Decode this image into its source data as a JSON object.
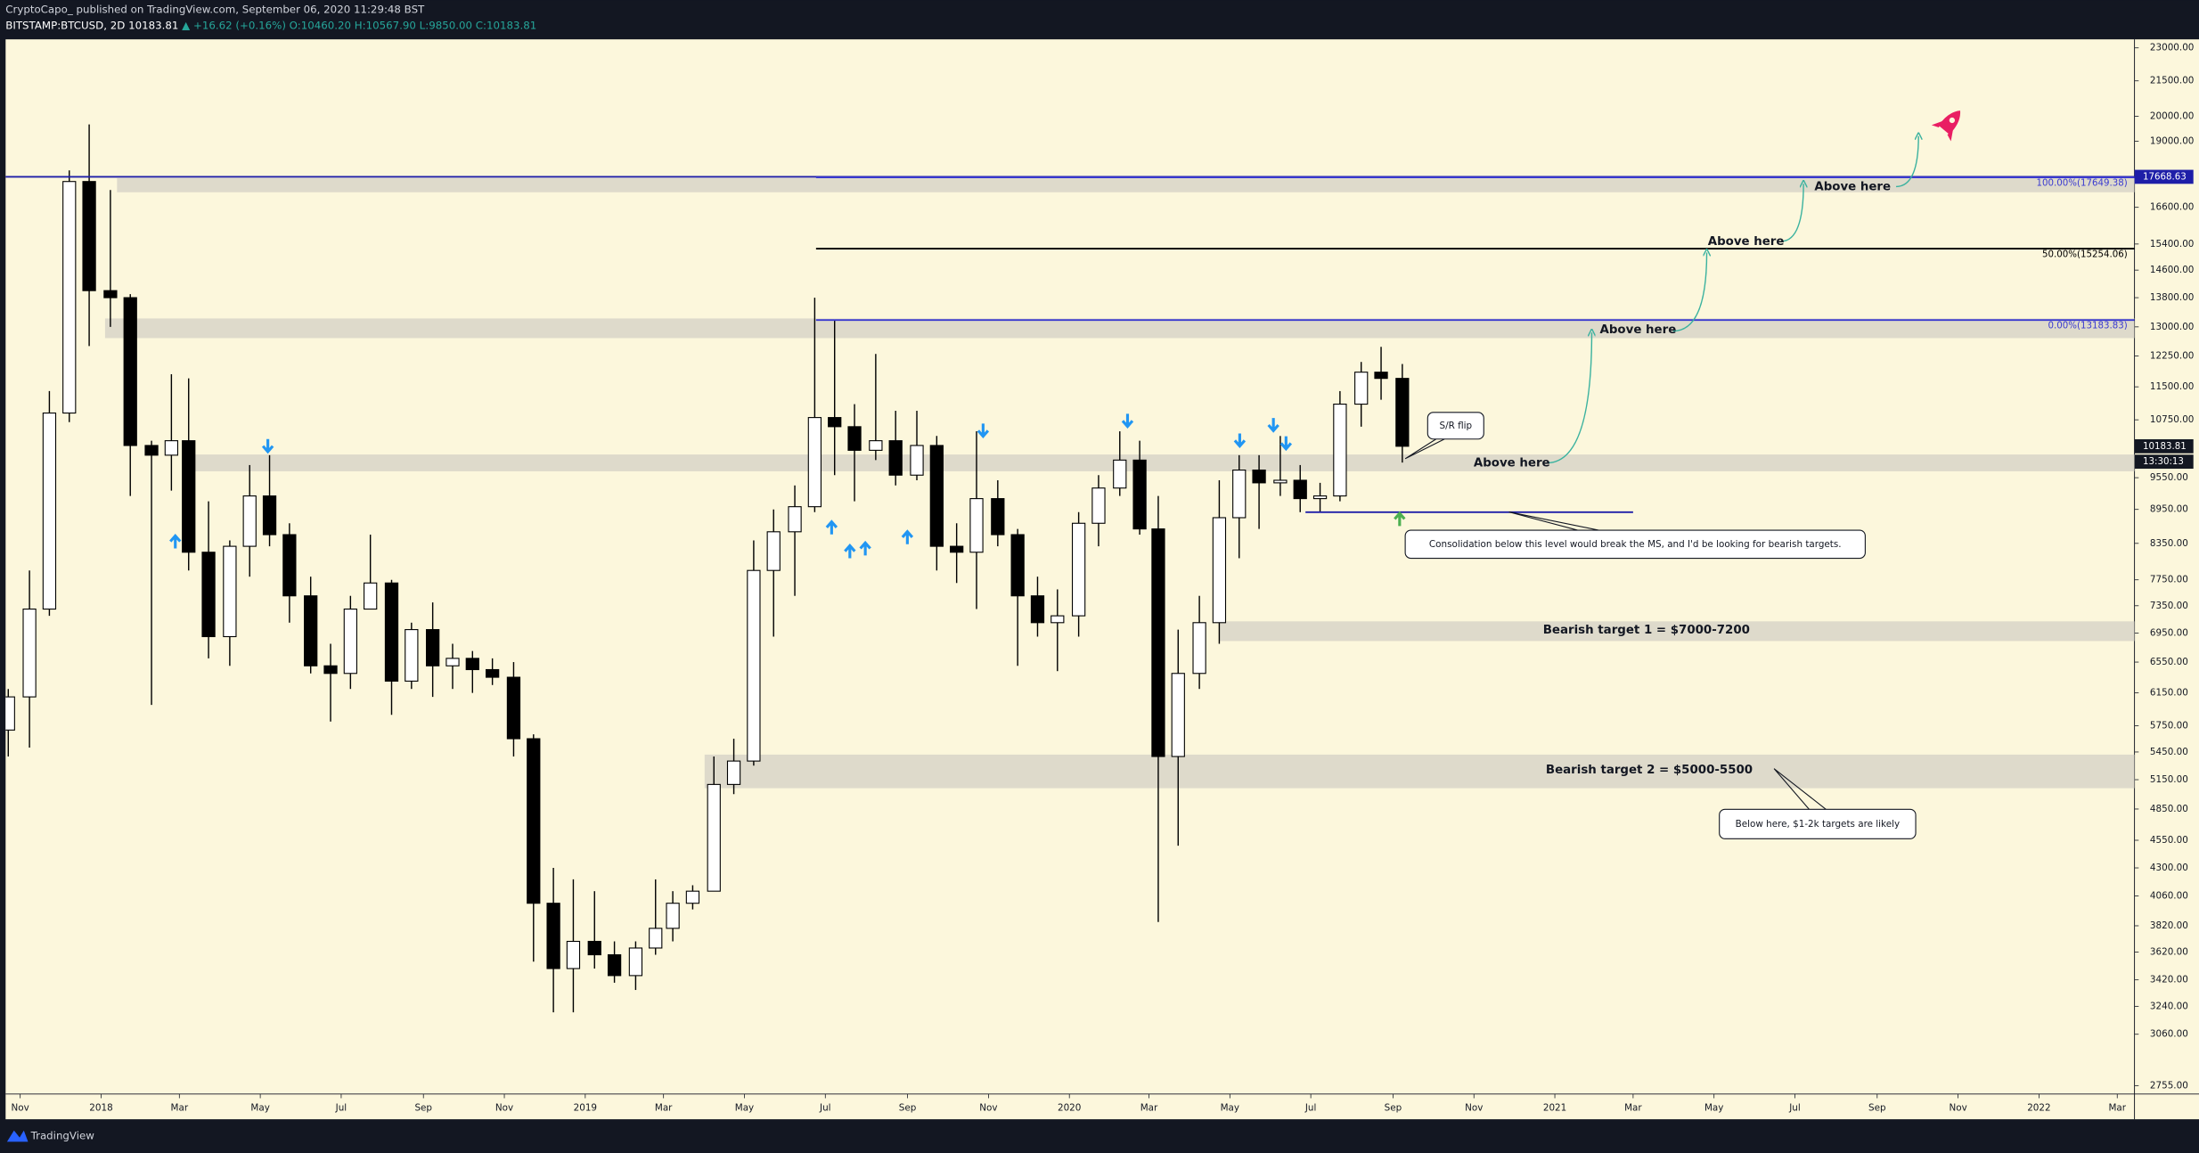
{
  "header": {
    "author_line": "CryptoCapo_  published on TradingView.com, September 06, 2020 11:29:48 BST",
    "symbol": "BITSTAMP:BTCUSD, 2D",
    "last": "10183.81",
    "change": "▲ +16.62 (+0.16%)",
    "ohlc": "O:10460.20 H:10567.90 L:9850.00 C:10183.81"
  },
  "footer": {
    "brand": "TradingView"
  },
  "chart_data": {
    "type": "candlestick",
    "log_scale": true,
    "grid": false,
    "up_color": "#ffffff",
    "down_color": "#000000",
    "wick_color": "#000000",
    "x": [
      "2017-10-16",
      "2017-11-01",
      "2017-11-16",
      "2017-12-01",
      "2017-12-16",
      "2018-01-01",
      "2018-01-16",
      "2018-02-01",
      "2018-02-16",
      "2018-03-01",
      "2018-03-16",
      "2018-04-01",
      "2018-04-16",
      "2018-05-01",
      "2018-05-16",
      "2018-06-01",
      "2018-06-16",
      "2018-07-01",
      "2018-07-16",
      "2018-08-01",
      "2018-08-16",
      "2018-09-01",
      "2018-09-16",
      "2018-10-01",
      "2018-10-16",
      "2018-11-01",
      "2018-11-16",
      "2018-12-01",
      "2018-12-16",
      "2019-01-01",
      "2019-01-16",
      "2019-02-01",
      "2019-02-16",
      "2019-03-01",
      "2019-03-16",
      "2019-04-01",
      "2019-04-16",
      "2019-05-01",
      "2019-05-16",
      "2019-06-01",
      "2019-06-16",
      "2019-07-01",
      "2019-07-16",
      "2019-08-01",
      "2019-08-16",
      "2019-09-01",
      "2019-09-16",
      "2019-10-01",
      "2019-10-16",
      "2019-11-01",
      "2019-11-16",
      "2019-12-01",
      "2019-12-16",
      "2020-01-01",
      "2020-01-16",
      "2020-02-01",
      "2020-02-16",
      "2020-03-01",
      "2020-03-16",
      "2020-04-01",
      "2020-04-16",
      "2020-05-01",
      "2020-05-16",
      "2020-06-01",
      "2020-06-16",
      "2020-07-01",
      "2020-07-16",
      "2020-08-01",
      "2020-08-16",
      "2020-09-01"
    ],
    "open": [
      5700,
      6100,
      7300,
      10900,
      17500,
      14000,
      13800,
      10200,
      10000,
      10300,
      8200,
      6900,
      8300,
      9200,
      8500,
      7500,
      6500,
      6400,
      7300,
      7700,
      6300,
      7000,
      6500,
      6600,
      6450,
      6350,
      5600,
      4000,
      3500,
      3700,
      3600,
      3450,
      3650,
      3800,
      4000,
      4100,
      5100,
      5350,
      7900,
      8550,
      9000,
      10800,
      10600,
      10100,
      10300,
      9600,
      10200,
      8300,
      8200,
      9150,
      8500,
      7500,
      7100,
      7200,
      8700,
      9350,
      9900,
      8600,
      5400,
      6400,
      7100,
      8800,
      9700,
      9450,
      9500,
      9150,
      9200,
      11100,
      11850,
      11700
    ],
    "high": [
      6200,
      7900,
      11400,
      17900,
      19666,
      17200,
      13900,
      10300,
      11800,
      11700,
      9100,
      8400,
      9800,
      10000,
      8700,
      7800,
      6800,
      7500,
      8500,
      7750,
      7100,
      7400,
      6800,
      6700,
      6600,
      6550,
      5650,
      4300,
      4200,
      4100,
      3700,
      3700,
      4200,
      4100,
      4150,
      5400,
      5600,
      8400,
      8950,
      9400,
      13800,
      13200,
      11100,
      12300,
      10950,
      10950,
      10400,
      8700,
      10500,
      9500,
      8600,
      7800,
      7600,
      8900,
      9600,
      10500,
      10300,
      9200,
      7000,
      7500,
      9500,
      10000,
      10000,
      10400,
      9800,
      9450,
      11400,
      12100,
      12480,
      12050
    ],
    "low": [
      5400,
      5500,
      7200,
      10700,
      12500,
      13000,
      9200,
      6000,
      9300,
      7900,
      6600,
      6500,
      7800,
      8300,
      7100,
      6400,
      5800,
      6200,
      7300,
      5880,
      6200,
      6100,
      6200,
      6150,
      6250,
      5400,
      3550,
      3200,
      3200,
      3500,
      3400,
      3350,
      3600,
      3700,
      3950,
      4100,
      5000,
      5300,
      6900,
      7500,
      8900,
      9600,
      9100,
      9900,
      9400,
      9500,
      7900,
      7700,
      7300,
      8300,
      6500,
      6900,
      6430,
      6900,
      8300,
      9200,
      8500,
      3850,
      4500,
      6200,
      6800,
      8100,
      8600,
      9200,
      8900,
      8900,
      9100,
      10600,
      11200,
      9850
    ],
    "close": [
      6100,
      7300,
      10900,
      17500,
      14000,
      13800,
      10200,
      10000,
      10300,
      8200,
      6900,
      8300,
      9200,
      8500,
      7500,
      6500,
      6400,
      7300,
      7700,
      6300,
      7000,
      6500,
      6600,
      6450,
      6350,
      5600,
      4000,
      3500,
      3700,
      3600,
      3450,
      3650,
      3800,
      4000,
      4100,
      5100,
      5350,
      7900,
      8550,
      9000,
      10800,
      10600,
      10100,
      10300,
      9600,
      10200,
      8300,
      8200,
      9150,
      8500,
      7500,
      7100,
      7200,
      8700,
      9350,
      9900,
      8600,
      5400,
      6400,
      7100,
      8800,
      9700,
      9450,
      9500,
      9150,
      9200,
      11100,
      11850,
      11700,
      10183.81
    ],
    "xlim": [
      "2017-10-21",
      "2022-03-14"
    ],
    "xticks": [
      {
        "value": "2017-11",
        "label": "Nov"
      },
      {
        "value": "2018-01",
        "label": "2018"
      },
      {
        "value": "2018-03",
        "label": "Mar"
      },
      {
        "value": "2018-05",
        "label": "May"
      },
      {
        "value": "2018-07",
        "label": "Jul"
      },
      {
        "value": "2018-09",
        "label": "Sep"
      },
      {
        "value": "2018-11",
        "label": "Nov"
      },
      {
        "value": "2019-01",
        "label": "2019"
      },
      {
        "value": "2019-03",
        "label": "Mar"
      },
      {
        "value": "2019-05",
        "label": "May"
      },
      {
        "value": "2019-07",
        "label": "Jul"
      },
      {
        "value": "2019-09",
        "label": "Sep"
      },
      {
        "value": "2019-11",
        "label": "Nov"
      },
      {
        "value": "2020-01",
        "label": "2020"
      },
      {
        "value": "2020-03",
        "label": "Mar"
      },
      {
        "value": "2020-05",
        "label": "May"
      },
      {
        "value": "2020-07",
        "label": "Jul"
      },
      {
        "value": "2020-09",
        "label": "Sep"
      },
      {
        "value": "2020-11",
        "label": "Nov"
      },
      {
        "value": "2021-01",
        "label": "2021"
      },
      {
        "value": "2021-03",
        "label": "Mar"
      },
      {
        "value": "2021-05",
        "label": "May"
      },
      {
        "value": "2021-07",
        "label": "Jul"
      },
      {
        "value": "2021-09",
        "label": "Sep"
      },
      {
        "value": "2021-11",
        "label": "Nov"
      },
      {
        "value": "2022-01",
        "label": "2022"
      },
      {
        "value": "2022-03",
        "label": "Mar"
      }
    ],
    "ylim": [
      2708,
      23404
    ],
    "yticks": [
      {
        "value": 23000,
        "label": "23000.00"
      },
      {
        "value": 21500,
        "label": "21500.00"
      },
      {
        "value": 20000,
        "label": "20000.00"
      },
      {
        "value": 19000,
        "label": "19000.00"
      },
      {
        "value": 16600,
        "label": "16600.00"
      },
      {
        "value": 15400,
        "label": "15400.00"
      },
      {
        "value": 14600,
        "label": "14600.00"
      },
      {
        "value": 13800,
        "label": "13800.00"
      },
      {
        "value": 13000,
        "label": "13000.00"
      },
      {
        "value": 12250,
        "label": "12250.00"
      },
      {
        "value": 11500,
        "label": "11500.00"
      },
      {
        "value": 10750,
        "label": "10750.00"
      },
      {
        "value": 9550,
        "label": "9550.00"
      },
      {
        "value": 8950,
        "label": "8950.00"
      },
      {
        "value": 8350,
        "label": "8350.00"
      },
      {
        "value": 7750,
        "label": "7750.00"
      },
      {
        "value": 7350,
        "label": "7350.00"
      },
      {
        "value": 6950,
        "label": "6950.00"
      },
      {
        "value": 6550,
        "label": "6550.00"
      },
      {
        "value": 6150,
        "label": "6150.00"
      },
      {
        "value": 5750,
        "label": "5750.00"
      },
      {
        "value": 5450,
        "label": "5450.00"
      },
      {
        "value": 5150,
        "label": "5150.00"
      },
      {
        "value": 4850,
        "label": "4850.00"
      },
      {
        "value": 4550,
        "label": "4550.00"
      },
      {
        "value": 4300,
        "label": "4300.00"
      },
      {
        "value": 4060,
        "label": "4060.00"
      },
      {
        "value": 3820,
        "label": "3820.00"
      },
      {
        "value": 3620,
        "label": "3620.00"
      },
      {
        "value": 3420,
        "label": "3420.00"
      },
      {
        "value": 3240,
        "label": "3240.00"
      },
      {
        "value": 3060,
        "label": "3060.00"
      },
      {
        "value": 2755,
        "label": "2755.00"
      }
    ],
    "price_labels": [
      {
        "value": 17668.63,
        "color": "#1e1ea8"
      },
      {
        "value": 10183.81,
        "color": "#131722"
      }
    ],
    "countdown": "13:30:13",
    "zones": [
      {
        "x0": "2018-01-13",
        "low": 17120,
        "high": 17620
      },
      {
        "x0": "2018-01-04",
        "low": 12705,
        "high": 13226
      },
      {
        "x0": "2018-03-12",
        "low": 9676,
        "high": 10014
      },
      {
        "x0": "2020-04-23",
        "low": 6838,
        "high": 7119
      },
      {
        "x0": "2019-04-01",
        "low": 5061,
        "high": 5421
      }
    ],
    "zone_color": "#dedacb",
    "levels": [
      {
        "value": 17668.63,
        "x0": "2017-10-21",
        "color": "#1e1ea8"
      },
      {
        "value": 17649.38,
        "x0": "2019-06-24",
        "color": "#3a3ad0",
        "label": "100.00%(17649.38)"
      },
      {
        "value": 15254.06,
        "x0": "2019-06-24",
        "color": "#000000",
        "label": "50.00%(15254.06)"
      },
      {
        "value": 13183.83,
        "x0": "2019-06-24",
        "color": "#3a3ad0",
        "label": "0.00%(13183.83)"
      },
      {
        "value": 8900,
        "x0": "2020-06-27",
        "x1": "2021-03-01",
        "color": "#1e1ea8"
      }
    ],
    "annotations": {
      "above_here": [
        "Above here",
        "Above here",
        "Above here",
        "Above here"
      ],
      "sr_flip": "S/R flip",
      "consolidation": "Consolidation below this level would break the MS, and I'd be looking for bearish targets.",
      "target1": "Bearish target 1 = $7000-7200",
      "target2": "Bearish target 2 = $5000-5500",
      "below_here": "Below here, $1-2k targets are likely"
    }
  }
}
